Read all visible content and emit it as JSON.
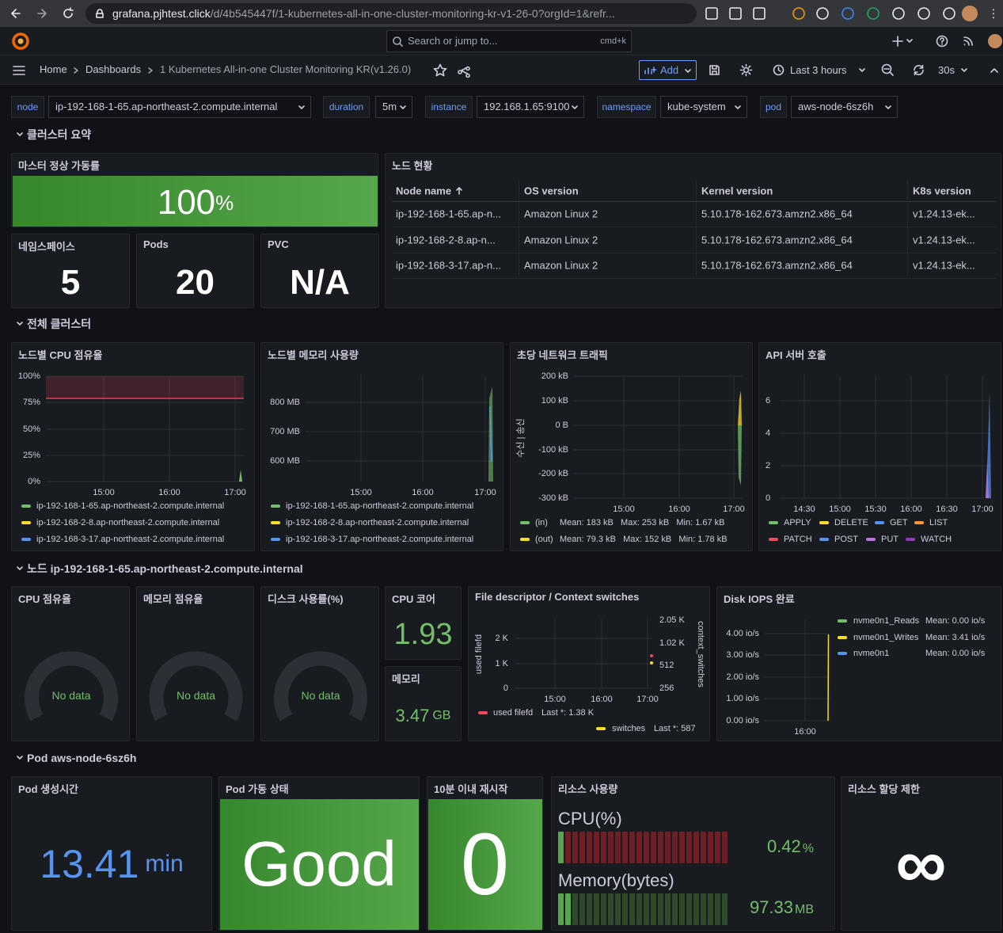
{
  "browser": {
    "url_host": "grafana.pjhtest.click",
    "url_path": "/d/4b545447f/1-kubernetes-all-in-one-cluster-monitoring-kr-v1-26-0?orgId=1&refr..."
  },
  "topbar": {
    "search": "Search or jump to...",
    "shortcut": "cmd+k"
  },
  "breadcrumb": [
    "Home",
    "Dashboards",
    "1 Kubernetes All-in-one Cluster Monitoring KR(v1.26.0)"
  ],
  "toolbar": {
    "add": "Add",
    "time_range": "Last 3 hours",
    "refresh": "30s"
  },
  "variables": [
    {
      "label": "node",
      "value": "ip-192-168-1-65.ap-northeast-2.compute.internal"
    },
    {
      "label": "duration",
      "value": "5m"
    },
    {
      "label": "instance",
      "value": "192.168.1.65:9100"
    },
    {
      "label": "namespace",
      "value": "kube-system"
    },
    {
      "label": "pod",
      "value": "aws-node-6sz6h"
    }
  ],
  "rows": [
    "클러스터 요약",
    "전체 클러스터",
    "노드 ip-192-168-1-65.ap-northeast-2.compute.internal",
    "Pod aws-node-6sz6h"
  ],
  "panels": {
    "master": {
      "title": "마스터 정상 가동률",
      "value": "100",
      "unit": "%"
    },
    "namespaces": {
      "title": "네임스페이스",
      "value": "5"
    },
    "pods": {
      "title": "Pods",
      "value": "20"
    },
    "pvc": {
      "title": "PVC",
      "value": "N/A"
    },
    "node_status": {
      "title": "노드 현황",
      "columns": [
        "Node name",
        "OS version",
        "Kernel version",
        "K8s version"
      ],
      "rows": [
        [
          "ip-192-168-1-65.ap-n...",
          "Amazon Linux 2",
          "5.10.178-162.673.amzn2.x86_64",
          "v1.24.13-ek..."
        ],
        [
          "ip-192-168-2-8.ap-n...",
          "Amazon Linux 2",
          "5.10.178-162.673.amzn2.x86_64",
          "v1.24.13-ek..."
        ],
        [
          "ip-192-168-3-17.ap-n...",
          "Amazon Linux 2",
          "5.10.178-162.673.amzn2.x86_64",
          "v1.24.13-ek..."
        ]
      ]
    },
    "cpu_by_node": {
      "title": "노드별 CPU 점유율",
      "yticks": [
        "100%",
        "75%",
        "50%",
        "25%",
        "0%"
      ],
      "xticks": [
        "15:00",
        "16:00",
        "17:00"
      ],
      "legend": [
        "ip-192-168-1-65.ap-northeast-2.compute.internal",
        "ip-192-168-2-8.ap-northeast-2.compute.internal",
        "ip-192-168-3-17.ap-northeast-2.compute.internal"
      ]
    },
    "mem_by_node": {
      "title": "노드별 메모리 사용량",
      "yticks": [
        "800 MB",
        "700 MB",
        "600 MB"
      ],
      "xticks": [
        "15:00",
        "16:00",
        "17:00"
      ],
      "legend": [
        "ip-192-168-1-65.ap-northeast-2.compute.internal",
        "ip-192-168-2-8.ap-northeast-2.compute.internal",
        "ip-192-168-3-17.ap-northeast-2.compute.internal"
      ]
    },
    "network": {
      "title": "초당 네트워크 트래픽",
      "ylabel": "수신 | 송신",
      "yticks": [
        "200 kB",
        "100 kB",
        "0 B",
        "-100 kB",
        "-200 kB",
        "-300 kB"
      ],
      "xticks": [
        "15:00",
        "16:00",
        "17:00"
      ],
      "legend": [
        {
          "name": "(in)",
          "stats": "Mean: 183 kB   Max: 253 kB   Min: 1.67 kB"
        },
        {
          "name": "(out)",
          "stats": "Mean: 79.3 kB   Max: 152 kB   Min: 1.78 kB"
        }
      ]
    },
    "api": {
      "title": "API 서버 호출",
      "yticks": [
        "6",
        "4",
        "2",
        "0"
      ],
      "xticks": [
        "14:30",
        "15:00",
        "15:30",
        "16:00",
        "16:30",
        "17:00"
      ],
      "legend": [
        "APPLY",
        "DELETE",
        "GET",
        "LIST",
        "PATCH",
        "POST",
        "PUT",
        "WATCH"
      ]
    },
    "gauges": [
      {
        "title": "CPU 점유율",
        "value": "No data"
      },
      {
        "title": "메모리 점유율",
        "value": "No data"
      },
      {
        "title": "디스크 사용률(%)",
        "value": "No data"
      }
    ],
    "cpu_cores": {
      "title": "CPU 코어",
      "value": "1.93"
    },
    "memory": {
      "title": "메모리",
      "value": "3.47",
      "unit": "GB"
    },
    "fd": {
      "title": "File descriptor / Context switches",
      "ylabel": "used filefd",
      "yticks": [
        "2 K",
        "1 K",
        "0"
      ],
      "y2label": "context_switches",
      "y2ticks": [
        "2.05 K",
        "1.02 K",
        "512",
        "256"
      ],
      "xticks": [
        "15:00",
        "16:00",
        "17:00"
      ],
      "legend": [
        {
          "name": "used filefd",
          "stats": "Last *: 1.38 K"
        },
        {
          "name": "switches",
          "stats": "Last *: 587"
        }
      ]
    },
    "disk_iops": {
      "title": "Disk IOPS 완료",
      "yticks": [
        "4.00 io/s",
        "3.00 io/s",
        "2.00 io/s",
        "1.00 io/s",
        "0.00 io/s"
      ],
      "xticks": [
        "16:00"
      ],
      "legend": [
        {
          "name": "nvme0n1_Reads",
          "stats": "Mean: 0.00 io/s"
        },
        {
          "name": "nvme0n1_Writes",
          "stats": "Mean: 3.41 io/s"
        },
        {
          "name": "nvme0n1",
          "stats": "Mean: 0.00 io/s"
        }
      ]
    },
    "pod_age": {
      "title": "Pod 생성시간",
      "value": "13.41",
      "unit": "min"
    },
    "pod_status": {
      "title": "Pod 가동 상태",
      "value": "Good"
    },
    "restarts": {
      "title": "10분 이내 재시작",
      "value": "0"
    },
    "resources": {
      "title": "리소스 사용량",
      "items": [
        {
          "name": "CPU(%)",
          "value": "0.42",
          "unit": "%"
        },
        {
          "name": "Memory(bytes)",
          "value": "97.33",
          "unit": "MB"
        }
      ]
    },
    "limits": {
      "title": "리소스 할당 제한",
      "value": "∞"
    }
  }
}
